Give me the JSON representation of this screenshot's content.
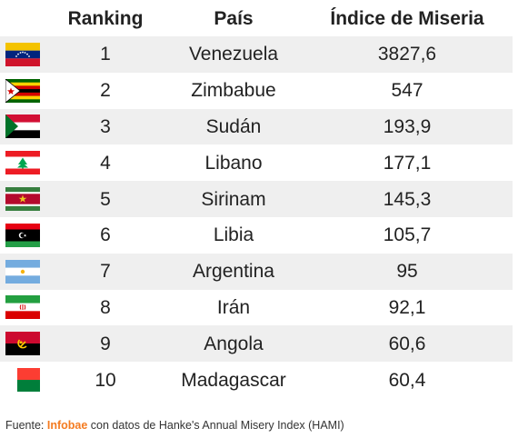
{
  "table": {
    "headers": {
      "ranking": "Ranking",
      "country": "País",
      "index": "Índice de Miseria"
    },
    "rows": [
      {
        "rank": "1",
        "country": "Venezuela",
        "index": "3827,6",
        "flag": "venezuela-flag-icon"
      },
      {
        "rank": "2",
        "country": "Zimbabue",
        "index": "547",
        "flag": "zimbabwe-flag-icon"
      },
      {
        "rank": "3",
        "country": "Sudán",
        "index": "193,9",
        "flag": "sudan-flag-icon"
      },
      {
        "rank": "4",
        "country": "Libano",
        "index": "177,1",
        "flag": "lebanon-flag-icon"
      },
      {
        "rank": "5",
        "country": "Sirinam",
        "index": "145,3",
        "flag": "suriname-flag-icon"
      },
      {
        "rank": "6",
        "country": "Libia",
        "index": "105,7",
        "flag": "libya-flag-icon"
      },
      {
        "rank": "7",
        "country": "Argentina",
        "index": "95",
        "flag": "argentina-flag-icon"
      },
      {
        "rank": "8",
        "country": "Irán",
        "index": "92,1",
        "flag": "iran-flag-icon"
      },
      {
        "rank": "9",
        "country": "Angola",
        "index": "60,6",
        "flag": "angola-flag-icon"
      },
      {
        "rank": "10",
        "country": "Madagascar",
        "index": "60,4",
        "flag": "madagascar-flag-icon"
      }
    ]
  },
  "footer": {
    "prefix": "Fuente: ",
    "brand": "Infobae",
    "suffix": " con datos de Hanke's Annual Misery Index (HAMI)"
  },
  "colors": {
    "row_shade": "#efefef",
    "brand": "#f47b20"
  }
}
